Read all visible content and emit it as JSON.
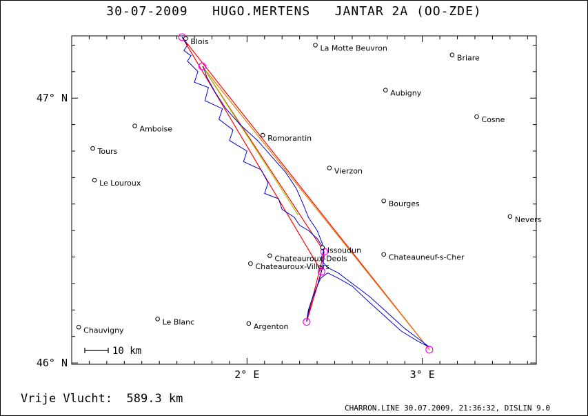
{
  "header": {
    "title": "30-07-2009   HUGO.MERTENS   JANTAR 2A (OO-ZDE)"
  },
  "footer": {
    "distance_label": "Vrije Vlucht:  589.3 km",
    "software_info": "CHARRON.LINE 30.07.2009, 21:36:32, DISLIN 9.0"
  },
  "chart_data": {
    "type": "map",
    "xlim": [
      1.0,
      3.65
    ],
    "ylim": [
      45.995,
      47.235
    ],
    "x_ticks": [
      {
        "value": 2.0,
        "label": "2° E"
      },
      {
        "value": 3.0,
        "label": "3° E"
      }
    ],
    "y_ticks": [
      {
        "value": 47.0,
        "label": "47° N"
      },
      {
        "value": 46.0,
        "label": "46° N"
      }
    ],
    "scale_bar": {
      "label": "10 km"
    },
    "cities": [
      {
        "name": "Blois",
        "lon": 1.65,
        "lat": 47.225
      },
      {
        "name": "La Motte Beuvron",
        "lon": 2.39,
        "lat": 47.2
      },
      {
        "name": "Briare",
        "lon": 3.17,
        "lat": 47.163
      },
      {
        "name": "Aubigny",
        "lon": 2.79,
        "lat": 47.03
      },
      {
        "name": "Cosne",
        "lon": 3.31,
        "lat": 46.93
      },
      {
        "name": "Amboise",
        "lon": 1.36,
        "lat": 46.895
      },
      {
        "name": "Romorantin",
        "lon": 2.09,
        "lat": 46.86
      },
      {
        "name": "Tours",
        "lon": 1.12,
        "lat": 46.81
      },
      {
        "name": "Vierzon",
        "lon": 2.47,
        "lat": 46.736
      },
      {
        "name": "Le Louroux",
        "lon": 1.13,
        "lat": 46.69
      },
      {
        "name": "Bourges",
        "lon": 2.78,
        "lat": 46.612
      },
      {
        "name": "Nevers",
        "lon": 3.5,
        "lat": 46.553
      },
      {
        "name": "Issoudun",
        "lon": 2.43,
        "lat": 46.436
      },
      {
        "name": "Chateauroux-Deols",
        "lon": 2.13,
        "lat": 46.405
      },
      {
        "name": "Chateauneuf-s-Cher",
        "lon": 2.78,
        "lat": 46.41
      },
      {
        "name": "Chateauroux-Villers",
        "lon": 2.02,
        "lat": 46.375
      },
      {
        "name": "Le Blanc",
        "lon": 1.49,
        "lat": 46.166
      },
      {
        "name": "Argenton",
        "lon": 2.01,
        "lat": 46.149
      },
      {
        "name": "Chauvigny",
        "lon": 1.04,
        "lat": 46.135
      }
    ],
    "turnpoints": [
      {
        "lon": 1.63,
        "lat": 47.23
      },
      {
        "lon": 1.745,
        "lat": 47.12
      },
      {
        "lon": 3.04,
        "lat": 46.05
      },
      {
        "lon": 2.44,
        "lat": 46.42
      },
      {
        "lon": 2.425,
        "lat": 46.345
      },
      {
        "lon": 2.34,
        "lat": 46.155
      }
    ],
    "task_lines": [
      {
        "color": "#ff0000",
        "points": [
          [
            1.63,
            47.23
          ],
          [
            3.04,
            46.05
          ]
        ]
      },
      {
        "color": "#e08000",
        "points": [
          [
            1.745,
            47.12
          ],
          [
            3.04,
            46.05
          ]
        ]
      },
      {
        "color": "#ff0000",
        "points": [
          [
            1.745,
            47.12
          ],
          [
            2.44,
            46.42
          ]
        ]
      },
      {
        "color": "#ff0000",
        "points": [
          [
            1.63,
            47.23
          ],
          [
            2.425,
            46.345
          ]
        ]
      },
      {
        "color": "#ff0000",
        "points": [
          [
            2.44,
            46.42
          ],
          [
            2.34,
            46.155
          ]
        ]
      },
      {
        "color": "#ff0000",
        "points": [
          [
            2.425,
            46.345
          ],
          [
            2.34,
            46.155
          ]
        ]
      },
      {
        "color": "#a0d000",
        "points": [
          [
            1.745,
            47.12
          ],
          [
            2.29,
            46.56
          ]
        ]
      },
      {
        "color": "#ff00ff",
        "points": [
          [
            2.44,
            46.42
          ],
          [
            2.43,
            46.35
          ]
        ]
      }
    ],
    "track": {
      "color": "#0000cc",
      "points": [
        [
          1.63,
          47.23
        ],
        [
          1.66,
          47.2
        ],
        [
          1.64,
          47.18
        ],
        [
          1.68,
          47.16
        ],
        [
          1.66,
          47.14
        ],
        [
          1.72,
          47.1
        ],
        [
          1.7,
          47.06
        ],
        [
          1.78,
          47.04
        ],
        [
          1.76,
          46.99
        ],
        [
          1.86,
          46.96
        ],
        [
          1.84,
          46.92
        ],
        [
          1.92,
          46.88
        ],
        [
          1.9,
          46.84
        ],
        [
          2.0,
          46.8
        ],
        [
          1.98,
          46.76
        ],
        [
          2.08,
          46.73
        ],
        [
          2.12,
          46.68
        ],
        [
          2.1,
          46.64
        ],
        [
          2.18,
          46.62
        ],
        [
          2.2,
          46.58
        ],
        [
          2.27,
          46.55
        ],
        [
          2.3,
          46.52
        ],
        [
          2.35,
          46.5
        ],
        [
          2.4,
          46.47
        ],
        [
          2.44,
          46.43
        ],
        [
          2.42,
          46.39
        ],
        [
          2.46,
          46.36
        ],
        [
          2.52,
          46.34
        ],
        [
          2.6,
          46.3
        ],
        [
          2.7,
          46.25
        ],
        [
          2.8,
          46.19
        ],
        [
          2.9,
          46.13
        ],
        [
          2.98,
          46.09
        ],
        [
          3.04,
          46.06
        ],
        [
          2.98,
          46.08
        ],
        [
          2.88,
          46.12
        ],
        [
          2.78,
          46.18
        ],
        [
          2.68,
          46.24
        ],
        [
          2.6,
          46.29
        ],
        [
          2.52,
          46.32
        ],
        [
          2.46,
          46.34
        ],
        [
          2.42,
          46.32
        ],
        [
          2.38,
          46.26
        ],
        [
          2.35,
          46.2
        ],
        [
          2.34,
          46.16
        ],
        [
          2.36,
          46.22
        ],
        [
          2.4,
          46.29
        ],
        [
          2.43,
          46.36
        ],
        [
          2.44,
          46.4
        ],
        [
          2.43,
          46.45
        ],
        [
          2.4,
          46.5
        ],
        [
          2.35,
          46.55
        ],
        [
          2.32,
          46.6
        ],
        [
          2.28,
          46.66
        ],
        [
          2.22,
          46.72
        ],
        [
          2.14,
          46.78
        ],
        [
          2.06,
          46.84
        ],
        [
          1.96,
          46.9
        ],
        [
          1.88,
          46.96
        ],
        [
          1.82,
          47.02
        ],
        [
          1.77,
          47.08
        ],
        [
          1.75,
          47.12
        ]
      ]
    }
  }
}
